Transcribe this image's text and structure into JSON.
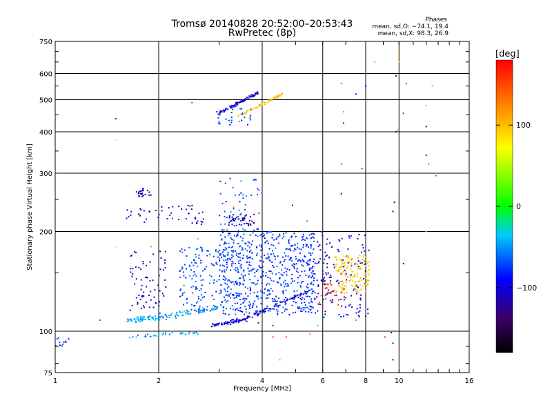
{
  "header": {
    "title_line1": "Tromsø 20140828 20:52:00–20:53:43",
    "title_line2": "RwPretec (8p)",
    "stats_title": "Phases",
    "stats_o": "mean, sd,O: −74.1, 19.4",
    "stats_x": "mean, sd,X:  98.3, 26.9"
  },
  "colorbar": {
    "label": "[deg]",
    "range": [
      -180,
      180
    ],
    "ticks": [
      100,
      0,
      -100
    ],
    "tick_labels": [
      "100",
      "0",
      "−100"
    ]
  },
  "chart_data": {
    "type": "scatter",
    "xlabel": "Frequency [MHz]",
    "ylabel": "Stationary phase Virtual Height [km]",
    "xscale": "log",
    "yscale": "log",
    "xlim": [
      1,
      16
    ],
    "ylim": [
      75,
      750
    ],
    "xticks": [
      1,
      2,
      4,
      6,
      8,
      10,
      16
    ],
    "xtick_labels": [
      "1",
      "2",
      "4",
      "6",
      "8",
      "10",
      "16"
    ],
    "yticks": [
      75,
      100,
      200,
      300,
      400,
      500,
      600,
      750
    ],
    "ytick_labels": [
      "75",
      "100",
      "200",
      "300",
      "400",
      "500",
      "600",
      "750"
    ],
    "grid": true,
    "point_groups": [
      {
        "kind": "segment",
        "f": [
          1.62,
          2.0
        ],
        "h": [
          108,
          110
        ],
        "phase": -45,
        "spread": 3,
        "n": 60
      },
      {
        "kind": "segment",
        "f": [
          2.0,
          3.0
        ],
        "h": [
          110,
          118
        ],
        "phase": -50,
        "spread": 4,
        "n": 70
      },
      {
        "kind": "segment",
        "f": [
          2.85,
          3.6
        ],
        "h": [
          104,
          109
        ],
        "phase": -105,
        "spread": 2,
        "n": 70
      },
      {
        "kind": "segment",
        "f": [
          3.6,
          5.5
        ],
        "h": [
          109,
          132
        ],
        "phase": -110,
        "spread": 3,
        "n": 80
      },
      {
        "kind": "segment",
        "f": [
          1.62,
          2.6
        ],
        "h": [
          96,
          99
        ],
        "phase": -45,
        "spread": 2,
        "n": 40
      },
      {
        "kind": "blob",
        "f": [
          3.0,
          5.7
        ],
        "h": [
          112,
          200
        ],
        "phase": -75,
        "n": 600
      },
      {
        "kind": "blob",
        "f": [
          2.3,
          3.5
        ],
        "h": [
          115,
          180
        ],
        "phase": -70,
        "n": 180
      },
      {
        "kind": "blob",
        "f": [
          1.65,
          2.1
        ],
        "h": [
          115,
          175
        ],
        "phase": -115,
        "n": 70
      },
      {
        "kind": "blob",
        "f": [
          5.5,
          8.2
        ],
        "h": [
          110,
          200
        ],
        "phase": -100,
        "n": 160
      },
      {
        "kind": "blob",
        "f": [
          6.5,
          8.2
        ],
        "h": [
          130,
          170
        ],
        "phase": 95,
        "n": 140
      },
      {
        "kind": "blob",
        "f": [
          5.8,
          7.0
        ],
        "h": [
          120,
          140
        ],
        "phase": 160,
        "n": 25
      },
      {
        "kind": "blob",
        "f": [
          3.2,
          3.8
        ],
        "h": [
          208,
          225
        ],
        "phase": -120,
        "n": 40
      },
      {
        "kind": "blob",
        "f": [
          3.0,
          4.0
        ],
        "h": [
          200,
          290
        ],
        "phase": -70,
        "n": 60
      },
      {
        "kind": "blob",
        "f": [
          1.72,
          1.9
        ],
        "h": [
          255,
          270
        ],
        "phase": -115,
        "n": 25
      },
      {
        "kind": "blob",
        "f": [
          1.6,
          2.7
        ],
        "h": [
          210,
          240
        ],
        "phase": -105,
        "n": 50
      },
      {
        "kind": "segment",
        "f": [
          3.0,
          3.9
        ],
        "h": [
          455,
          525
        ],
        "phase": -110,
        "spread": 8,
        "n": 90
      },
      {
        "kind": "segment",
        "f": [
          3.4,
          4.6
        ],
        "h": [
          445,
          520
        ],
        "phase": 100,
        "spread": 8,
        "n": 60
      },
      {
        "kind": "blob",
        "f": [
          2.95,
          3.8
        ],
        "h": [
          420,
          480
        ],
        "phase": -75,
        "n": 30
      },
      {
        "kind": "blob",
        "f": [
          1.0,
          1.12
        ],
        "h": [
          90,
          96
        ],
        "phase": -75,
        "n": 12
      }
    ],
    "sparse_points": [
      [
        1.5,
        438,
        -110
      ],
      [
        1.5,
        378,
        60
      ],
      [
        1.5,
        180,
        55
      ],
      [
        1.9,
        180,
        120
      ],
      [
        1.35,
        108,
        -60
      ],
      [
        2.5,
        490,
        -60
      ],
      [
        2.6,
        190,
        -30
      ],
      [
        3.3,
        237,
        120
      ],
      [
        4.9,
        240,
        -90
      ],
      [
        5.4,
        215,
        155
      ],
      [
        6.8,
        320,
        150
      ],
      [
        6.8,
        260,
        -100
      ],
      [
        6.8,
        560,
        150
      ],
      [
        7.5,
        520,
        -80
      ],
      [
        8.0,
        550,
        -90
      ],
      [
        7.8,
        310,
        -70
      ],
      [
        6.9,
        460,
        -30
      ],
      [
        6.9,
        425,
        -80
      ],
      [
        8.5,
        650,
        110
      ],
      [
        10.0,
        650,
        110
      ],
      [
        9.8,
        590,
        -130
      ],
      [
        10.0,
        680,
        140
      ],
      [
        10.3,
        455,
        170
      ],
      [
        9.8,
        400,
        -100
      ],
      [
        9.9,
        405,
        120
      ],
      [
        10.0,
        260,
        150
      ],
      [
        9.7,
        245,
        -110
      ],
      [
        9.6,
        230,
        -100
      ],
      [
        10.3,
        160,
        -110
      ],
      [
        10.5,
        560,
        160
      ],
      [
        12.5,
        550,
        110
      ],
      [
        12.0,
        480,
        110
      ],
      [
        12.0,
        415,
        -90
      ],
      [
        12.2,
        320,
        150
      ],
      [
        12.0,
        340,
        -80
      ],
      [
        12.8,
        295,
        -60
      ],
      [
        12.0,
        200,
        100
      ],
      [
        4.3,
        96,
        160
      ],
      [
        4.7,
        96,
        150
      ],
      [
        5.5,
        98,
        120
      ],
      [
        5.9,
        100,
        130
      ],
      [
        5.8,
        104,
        -20
      ],
      [
        7.1,
        112,
        -110
      ],
      [
        7.5,
        108,
        130
      ],
      [
        8.0,
        111,
        -120
      ],
      [
        9.5,
        99,
        -150
      ],
      [
        9.6,
        92,
        -140
      ],
      [
        9.6,
        82,
        -130
      ],
      [
        9.1,
        96,
        160
      ],
      [
        4.5,
        82,
        120
      ],
      [
        3.9,
        106,
        -95
      ],
      [
        4.3,
        104,
        -80
      ]
    ]
  }
}
